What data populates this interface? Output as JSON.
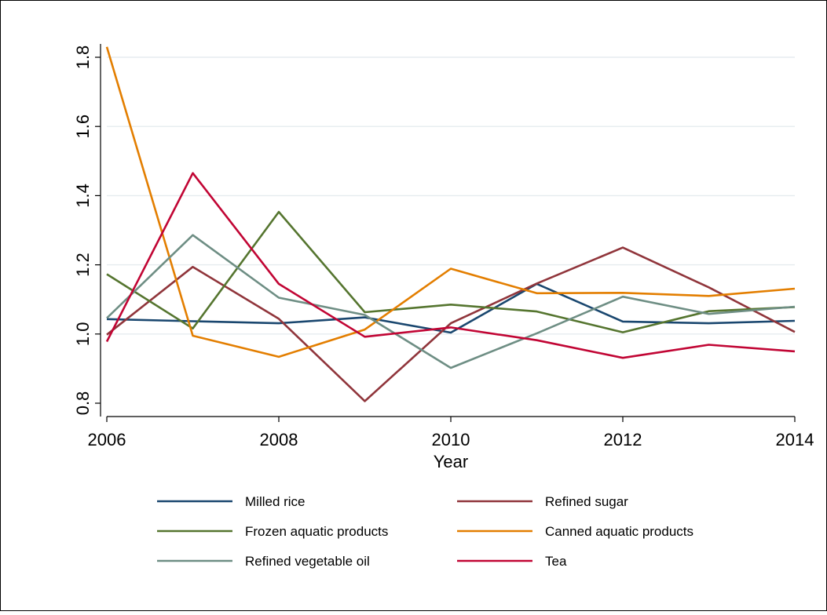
{
  "chart_data": {
    "type": "line",
    "xlabel": "Year",
    "ylabel": "",
    "xlim": [
      2006,
      2014
    ],
    "ylim": [
      0.8,
      1.8
    ],
    "x_ticks": [
      "2006",
      "2008",
      "2010",
      "2012",
      "2014"
    ],
    "y_ticks": [
      "0.8",
      "1.0",
      "1.2",
      "1.4",
      "1.6",
      "1.8"
    ],
    "grid": "horizontal",
    "legend_position": "bottom",
    "x": [
      2006,
      2007,
      2008,
      2009,
      2010,
      2011,
      2012,
      2013,
      2014
    ],
    "series": [
      {
        "name": "Milled rice",
        "color": "#1a476f",
        "values": [
          1.043,
          1.037,
          1.031,
          1.048,
          1.004,
          1.145,
          1.036,
          1.031,
          1.038
        ]
      },
      {
        "name": "Refined sugar",
        "color": "#90353b",
        "values": [
          0.998,
          1.194,
          1.044,
          0.806,
          1.031,
          1.146,
          1.25,
          1.135,
          1.006
        ]
      },
      {
        "name": "Frozen aquatic products",
        "color": "#55752f",
        "values": [
          1.173,
          1.016,
          1.353,
          1.063,
          1.085,
          1.065,
          1.005,
          1.066,
          1.078
        ]
      },
      {
        "name": "Canned aquatic products",
        "color": "#e37e00",
        "values": [
          1.83,
          0.995,
          0.934,
          1.013,
          1.189,
          1.118,
          1.119,
          1.11,
          1.131
        ]
      },
      {
        "name": "Refined vegetable oil",
        "color": "#6e8e84",
        "values": [
          1.046,
          1.286,
          1.105,
          1.055,
          0.902,
          1.002,
          1.108,
          1.058,
          1.079
        ]
      },
      {
        "name": "Tea",
        "color": "#c10534",
        "values": [
          0.978,
          1.465,
          1.145,
          0.992,
          1.019,
          0.982,
          0.931,
          0.969,
          0.95
        ]
      }
    ]
  }
}
